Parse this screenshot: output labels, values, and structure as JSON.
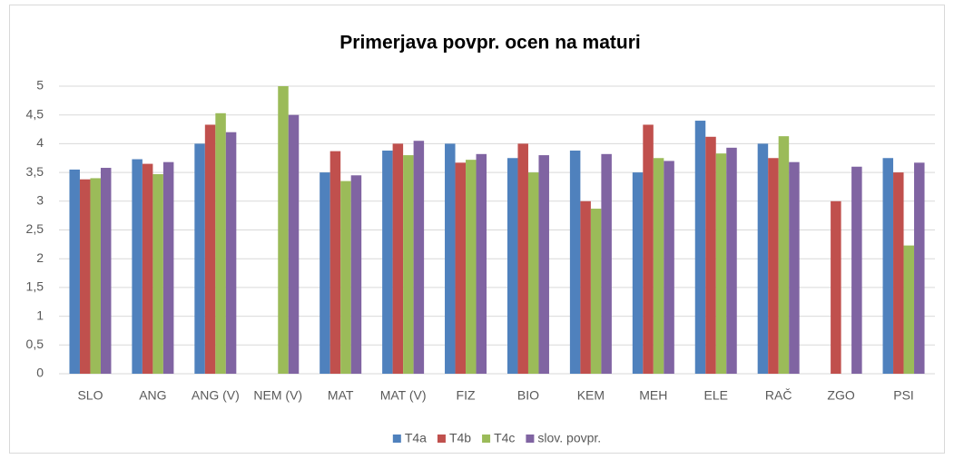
{
  "chart_data": {
    "type": "bar",
    "title": "Primerjava povpr. ocen na maturi",
    "categories": [
      "SLO",
      "ANG",
      "ANG (V)",
      "NEM (V)",
      "MAT",
      "MAT (V)",
      "FIZ",
      "BIO",
      "KEM",
      "MEH",
      "ELE",
      "RAČ",
      "ZGO",
      "PSI"
    ],
    "series": [
      {
        "name": "T4a",
        "color": "#4f81bd",
        "values": [
          3.55,
          3.73,
          4.0,
          null,
          3.5,
          3.88,
          4.0,
          3.75,
          3.88,
          3.5,
          4.4,
          4.0,
          null,
          3.75
        ]
      },
      {
        "name": "T4b",
        "color": "#c0504d",
        "values": [
          3.38,
          3.65,
          4.33,
          null,
          3.87,
          4.0,
          3.67,
          4.0,
          3.0,
          4.33,
          4.12,
          3.75,
          3.0,
          3.5
        ]
      },
      {
        "name": "T4c",
        "color": "#9bbb59",
        "values": [
          3.4,
          3.47,
          4.53,
          5.0,
          3.35,
          3.8,
          3.72,
          3.5,
          2.87,
          3.75,
          3.83,
          4.13,
          null,
          2.23
        ]
      },
      {
        "name": "slov. povpr.",
        "color": "#8064a2",
        "values": [
          3.58,
          3.68,
          4.2,
          4.5,
          3.45,
          4.05,
          3.82,
          3.8,
          3.82,
          3.7,
          3.93,
          3.68,
          3.6,
          3.67
        ]
      }
    ],
    "ylim": [
      0,
      5
    ],
    "yticks": [
      0,
      {
        "value": 0.5,
        "label": "0,5"
      },
      1,
      {
        "value": 1.5,
        "label": "1,5"
      },
      2,
      {
        "value": 2.5,
        "label": "2,5"
      },
      3,
      {
        "value": 3.5,
        "label": "3,5"
      },
      4,
      {
        "value": 4.5,
        "label": "4,5"
      },
      5
    ],
    "grid": true,
    "legend": "bottom"
  }
}
